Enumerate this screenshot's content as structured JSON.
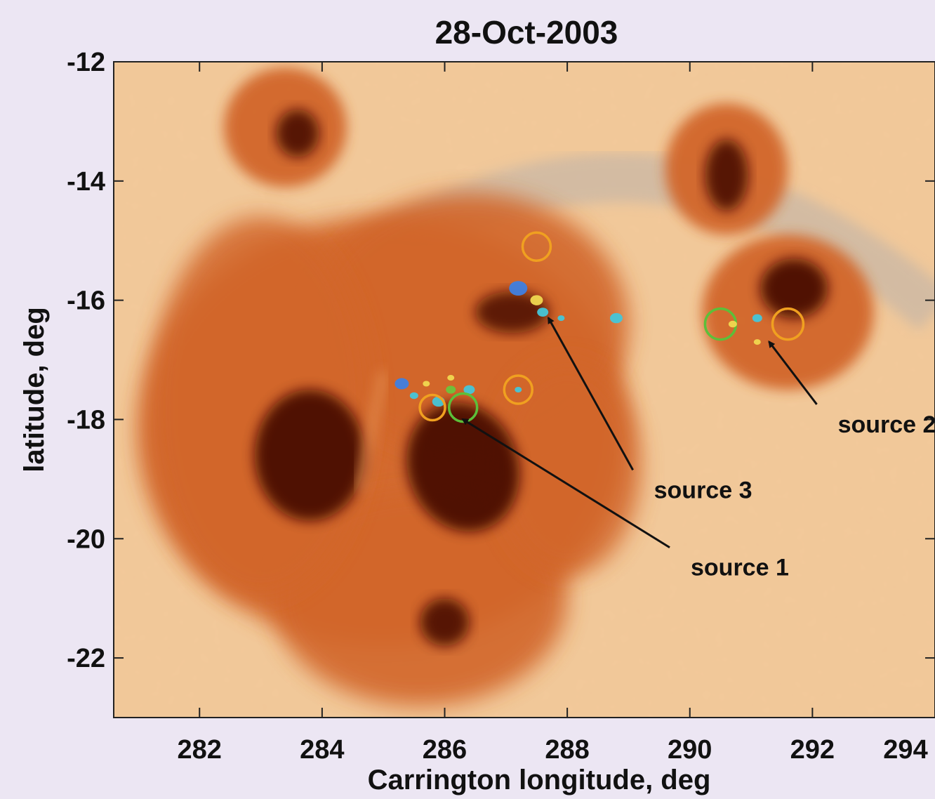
{
  "chart_data": {
    "type": "scatter",
    "title": "28-Oct-2003",
    "xlabel": "Carrington  longitude,  deg",
    "ylabel": "latitude,  deg",
    "xlim": [
      280.6,
      294.0
    ],
    "ylim": [
      -23.0,
      -12.0
    ],
    "xticks": [
      282,
      284,
      286,
      288,
      290,
      292,
      294
    ],
    "yticks": [
      -12,
      -14,
      -16,
      -18,
      -20,
      -22
    ],
    "annotations": [
      {
        "text": "source 1",
        "x": 286.2,
        "y": -17.9,
        "label_x": 289.9,
        "label_y": -20.5
      },
      {
        "text": "source 2",
        "x": 291.2,
        "y": -16.6,
        "label_x": 292.3,
        "label_y": -18.1
      },
      {
        "text": "source 3",
        "x": 287.6,
        "y": -16.2,
        "label_x": 289.3,
        "label_y": -19.2
      }
    ],
    "colors": {
      "background": "#f2c99a",
      "penumbra": "#d2662a",
      "umbra": "#4a0d05",
      "loop": "#c9b7a6",
      "contour_blue": "#3f80e0",
      "contour_cyan": "#46c6d8",
      "contour_green": "#6cc43c",
      "contour_yellow": "#f0d850",
      "circle_orange": "#f0a020",
      "circle_green": "#5cbf3a"
    }
  }
}
